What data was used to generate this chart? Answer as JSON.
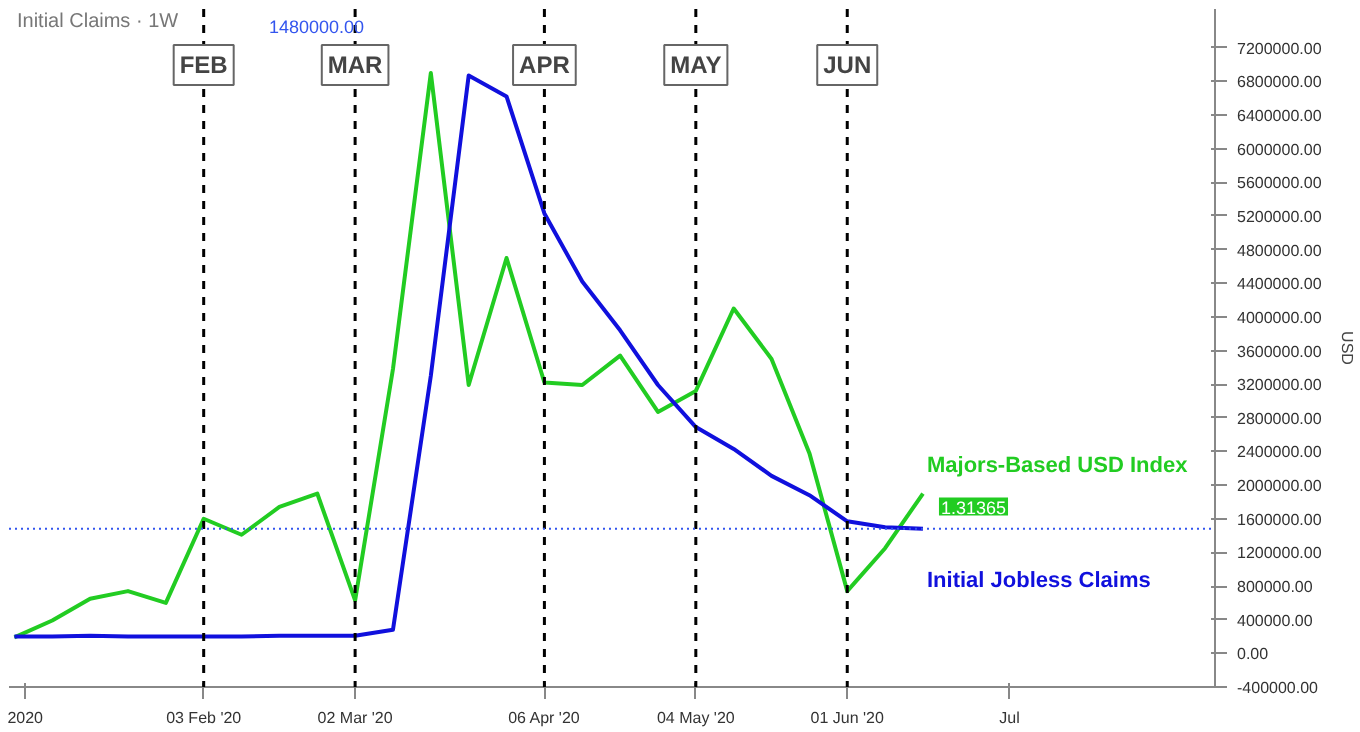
{
  "chart_data": {
    "type": "line",
    "title": "Initial Claims · 1W",
    "subtitle": "1480000.00",
    "ylabel": "USD",
    "x": [
      "2019-12-30",
      "2020-01-06",
      "2020-01-13",
      "2020-01-20",
      "2020-01-27",
      "2020-02-03",
      "2020-02-10",
      "2020-02-17",
      "2020-02-24",
      "2020-03-02",
      "2020-03-09",
      "2020-03-16",
      "2020-03-23",
      "2020-03-30",
      "2020-04-06",
      "2020-04-13",
      "2020-04-20",
      "2020-04-27",
      "2020-05-04",
      "2020-05-11",
      "2020-05-18",
      "2020-05-25",
      "2020-06-01",
      "2020-06-08",
      "2020-06-15"
    ],
    "series": [
      {
        "name": "Majors-Based USD Index",
        "color": "#22cc22",
        "values": [
          190000,
          390000,
          650000,
          740000,
          600000,
          1600000,
          1410000,
          1740000,
          1900000,
          630000,
          3380000,
          6900000,
          3190000,
          4700000,
          3220000,
          3190000,
          3540000,
          2870000,
          3120000,
          4100000,
          3500000,
          2380000,
          740000,
          1250000,
          1900000
        ]
      },
      {
        "name": "Initial Jobless Claims",
        "color": "#1010dd",
        "values": [
          200000,
          200000,
          210000,
          200000,
          200000,
          200000,
          200000,
          210000,
          210000,
          210000,
          280000,
          3300000,
          6870000,
          6620000,
          5230000,
          4420000,
          3840000,
          3190000,
          2690000,
          2430000,
          2110000,
          1880000,
          1570000,
          1500000,
          1480000
        ]
      }
    ],
    "annotations": [
      {
        "text": "1.31365",
        "x": "2020-06-15",
        "y": 1900000
      }
    ],
    "xlim": [
      "2019-12-29",
      "2020-08-08"
    ],
    "xticks": [
      {
        "value": "2020-01-01",
        "label": "2020"
      },
      {
        "value": "2020-02-03",
        "label": "03 Feb '20"
      },
      {
        "value": "2020-03-02",
        "label": "02 Mar '20"
      },
      {
        "value": "2020-04-06",
        "label": "06 Apr '20"
      },
      {
        "value": "2020-05-04",
        "label": "04 May '20"
      },
      {
        "value": "2020-06-01",
        "label": "01 Jun '20"
      },
      {
        "value": "2020-07-01",
        "label": "Jul"
      }
    ],
    "ylim": [
      -400000,
      7660000
    ],
    "yticks": [
      {
        "value": -400000,
        "label": "-400000.00"
      },
      {
        "value": 0,
        "label": "0.00"
      },
      {
        "value": 400000,
        "label": "400000.00"
      },
      {
        "value": 800000,
        "label": "800000.00"
      },
      {
        "value": 1200000,
        "label": "1200000.00"
      },
      {
        "value": 1600000,
        "label": "1600000.00"
      },
      {
        "value": 2000000,
        "label": "2000000.00"
      },
      {
        "value": 2400000,
        "label": "2400000.00"
      },
      {
        "value": 2800000,
        "label": "2800000.00"
      },
      {
        "value": 3200000,
        "label": "3200000.00"
      },
      {
        "value": 3600000,
        "label": "3600000.00"
      },
      {
        "value": 4000000,
        "label": "4000000.00"
      },
      {
        "value": 4400000,
        "label": "4400000.00"
      },
      {
        "value": 4800000,
        "label": "4800000.00"
      },
      {
        "value": 5200000,
        "label": "5200000.00"
      },
      {
        "value": 5600000,
        "label": "5600000.00"
      },
      {
        "value": 6000000,
        "label": "6000000.00"
      },
      {
        "value": 6400000,
        "label": "6400000.00"
      },
      {
        "value": 6800000,
        "label": "6800000.00"
      },
      {
        "value": 7200000,
        "label": "7200000.00"
      }
    ],
    "ref_lines": [
      {
        "axis": "x",
        "value": "2020-02-03",
        "label": "FEB",
        "color": "#000000",
        "line_style": "dashed"
      },
      {
        "axis": "x",
        "value": "2020-03-02",
        "label": "MAR",
        "color": "#000000",
        "line_style": "dashed"
      },
      {
        "axis": "x",
        "value": "2020-04-06",
        "label": "APR",
        "color": "#000000",
        "line_style": "dashed"
      },
      {
        "axis": "x",
        "value": "2020-05-04",
        "label": "MAY",
        "color": "#000000",
        "line_style": "dashed"
      },
      {
        "axis": "x",
        "value": "2020-06-01",
        "label": "JUN",
        "color": "#000000",
        "line_style": "dashed"
      },
      {
        "axis": "y",
        "value": 1480000,
        "label": null,
        "color": "#3355ee",
        "line_style": "dotted"
      }
    ],
    "grid": false,
    "legend": false,
    "marker": "none",
    "line_style": "solid"
  }
}
